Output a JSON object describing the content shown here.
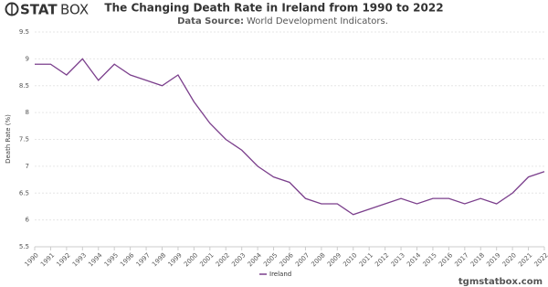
{
  "logo": {
    "bold": "STAT",
    "light": "BOX"
  },
  "footer": "tgmstatbox.com",
  "chart_data": {
    "type": "line",
    "title": "The Changing Death Rate in Ireland from 1990 to 2022",
    "subtitle_label": "Data Source:",
    "subtitle": "World Development Indicators.",
    "y_label": "Death Rate (%)",
    "categories": [
      "1990",
      "1991",
      "1992",
      "1993",
      "1994",
      "1995",
      "1996",
      "1997",
      "1998",
      "1999",
      "2000",
      "2001",
      "2002",
      "2003",
      "2004",
      "2005",
      "2006",
      "2007",
      "2008",
      "2009",
      "2010",
      "2011",
      "2012",
      "2013",
      "2014",
      "2015",
      "2016",
      "2017",
      "2018",
      "2019",
      "2020",
      "2021",
      "2022"
    ],
    "series": [
      {
        "name": "Ireland",
        "color": "#7b3f8c",
        "values": [
          8.9,
          8.9,
          8.7,
          9.0,
          8.6,
          8.9,
          8.7,
          8.6,
          8.5,
          8.7,
          8.2,
          7.8,
          7.5,
          7.3,
          7.0,
          6.8,
          6.7,
          6.4,
          6.3,
          6.3,
          6.1,
          6.2,
          6.3,
          6.4,
          6.3,
          6.4,
          6.4,
          6.3,
          6.4,
          6.3,
          6.5,
          6.8,
          6.9
        ]
      }
    ],
    "ylim": [
      5.5,
      9.5
    ],
    "yticks": [
      5.5,
      6,
      6.5,
      7,
      7.5,
      8,
      8.5,
      9,
      9.5
    ],
    "grid": true
  }
}
